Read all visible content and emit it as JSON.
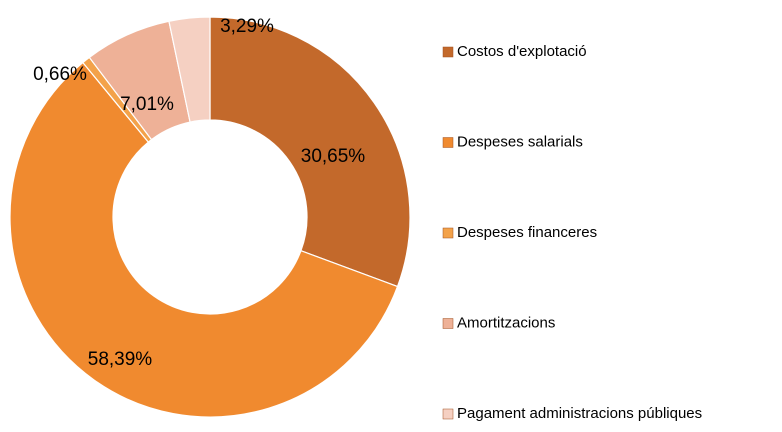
{
  "chart_data": {
    "type": "donut",
    "categories": [
      "Costos d'explotació",
      "Despeses salarials",
      "Despeses financeres",
      "Amortitzacions",
      "Pagament administracions públiques"
    ],
    "values": [
      30.65,
      58.39,
      0.66,
      7.01,
      3.29
    ],
    "value_labels": [
      "30,65%",
      "58,39%",
      "0,66%",
      "7,01%",
      "3,29%"
    ],
    "colors": [
      "#c3692b",
      "#f08a2f",
      "#f3a24a",
      "#eeb197",
      "#f5d0c2"
    ],
    "legend": "right"
  }
}
